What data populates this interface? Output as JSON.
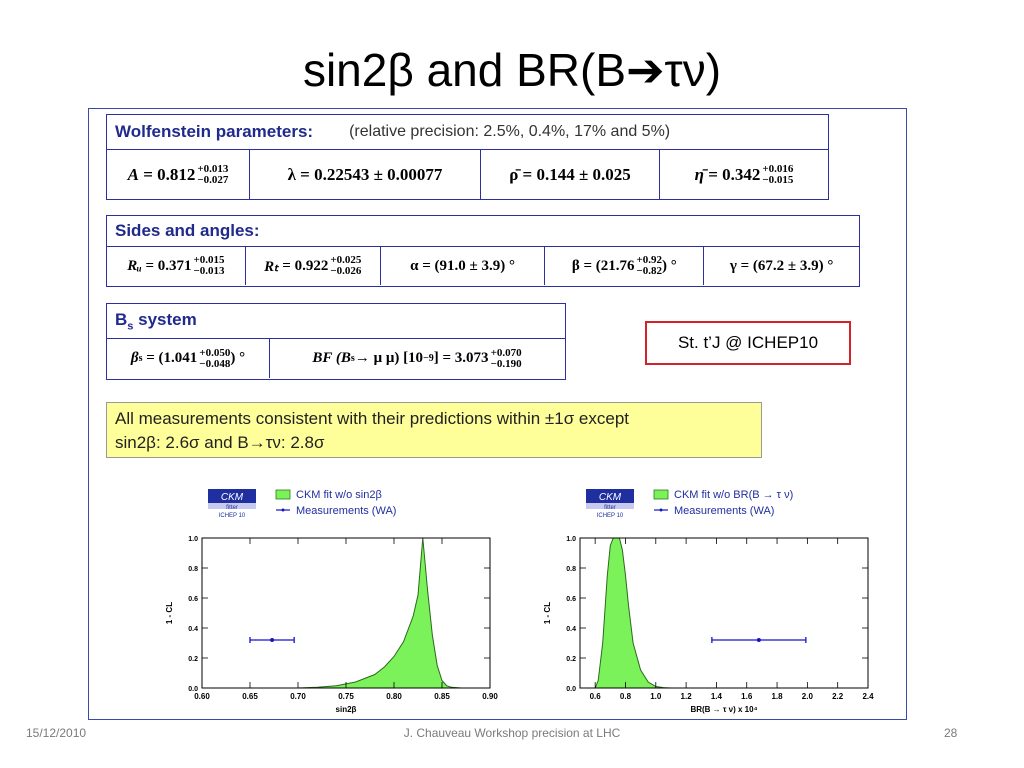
{
  "slide": {
    "title": "sin2β and BR(B➔τν)",
    "tag": "St. t’J @ ICHEP10",
    "summary_line1": "All measurements consistent with their predictions within ±1σ except",
    "summary_line2": "sin2β: 2.6σ and B→τν: 2.8σ",
    "footer_date": "15/12/2010",
    "footer_center": "J. Chauveau Workshop precision at LHC",
    "footer_page": "28"
  },
  "wolfenstein": {
    "header": "Wolfenstein parameters:",
    "note": "(relative precision: 2.5%, 0.4%, 17% and  5%)",
    "A": {
      "label": "A",
      "value": "0.812",
      "up": "+0.013",
      "down": "−0.027"
    },
    "lambda": "λ = 0.22543 ± 0.00077",
    "rho": "ρ̄ = 0.144 ± 0.025",
    "eta": {
      "label": "η̄",
      "value": "0.342",
      "up": "+0.016",
      "down": "−0.015"
    }
  },
  "sides": {
    "header": "Sides and angles:",
    "Ru": {
      "label": "Rᵤ",
      "value": "0.371",
      "up": "+0.015",
      "down": "−0.013"
    },
    "Rt": {
      "label": "Rₜ",
      "value": "0.922",
      "up": "+0.025",
      "down": "−0.026"
    },
    "alpha": "α = (91.0 ± 3.9) °",
    "beta": {
      "label": "β = (21.76",
      "up": "+0.92",
      "down": "−0.82",
      "unit": ") °"
    },
    "gamma": "γ = (67.2 ± 3.9) °"
  },
  "bs": {
    "header": "B",
    "header_sub": "s",
    "header_tail": " system",
    "beta_s": {
      "label": "β",
      "sub": "s",
      "value": "= (1.041",
      "up": "+0.050",
      "down": "−0.048",
      "unit": ") °"
    },
    "bf": {
      "label": "BF (B",
      "sub": "s",
      "mid": " → μ μ) [10",
      "exp": "−9",
      "tail": "] = 3.073",
      "up": "+0.070",
      "down": "−0.190"
    }
  },
  "chart_data": [
    {
      "type": "area",
      "legend": {
        "logo_line1": "CKM",
        "logo_line2": "fitter",
        "logo_line3": "ICHEP 10",
        "fit_label": "CKM fit w/o sin2β",
        "meas_label": "Measurements (WA)"
      },
      "xlabel": "sin2β",
      "ylabel": "1 - CL",
      "xlim": [
        0.6,
        0.9
      ],
      "ylim": [
        0,
        1
      ],
      "xticks": [
        "0.60",
        "0.65",
        "0.70",
        "0.75",
        "0.80",
        "0.85",
        "0.90"
      ],
      "yticks": [
        "0.0",
        "0.2",
        "0.4",
        "0.6",
        "0.8",
        "1.0"
      ],
      "series": [
        {
          "x": [
            0.7,
            0.72,
            0.74,
            0.76,
            0.78,
            0.79,
            0.8,
            0.81,
            0.82,
            0.825,
            0.83,
            0.835,
            0.84,
            0.845,
            0.85,
            0.855,
            0.86,
            0.87
          ],
          "y": [
            0.0,
            0.005,
            0.015,
            0.04,
            0.09,
            0.14,
            0.21,
            0.31,
            0.48,
            0.62,
            1.0,
            0.65,
            0.35,
            0.15,
            0.05,
            0.015,
            0.005,
            0.0
          ]
        }
      ],
      "measurement": {
        "x": 0.673,
        "xerr_low": 0.023,
        "xerr_high": 0.023,
        "y": 0.32
      },
      "fill_color": "#7cf25a",
      "meas_color": "#1515c8"
    },
    {
      "type": "area",
      "legend": {
        "logo_line1": "CKM",
        "logo_line2": "fitter",
        "logo_line3": "ICHEP 10",
        "fit_label": "CKM fit w/o BR(B → τ ν)",
        "meas_label": "Measurements (WA)"
      },
      "xlabel": "BR(B → τ ν) x 10⁴",
      "ylabel": "1 - CL",
      "xlim": [
        0.5,
        2.4
      ],
      "ylim": [
        0,
        1
      ],
      "xticks": [
        "0.6",
        "0.8",
        "1.0",
        "1.2",
        "1.4",
        "1.6",
        "1.8",
        "2.0",
        "2.2",
        "2.4"
      ],
      "yticks": [
        "0.0",
        "0.2",
        "0.4",
        "0.6",
        "0.8",
        "1.0"
      ],
      "series": [
        {
          "x": [
            0.6,
            0.62,
            0.65,
            0.68,
            0.7,
            0.72,
            0.74,
            0.76,
            0.78,
            0.8,
            0.82,
            0.85,
            0.9,
            0.95,
            1.0,
            1.05,
            1.1
          ],
          "y": [
            0.0,
            0.05,
            0.3,
            0.75,
            0.95,
            1.0,
            1.0,
            1.0,
            0.92,
            0.75,
            0.55,
            0.3,
            0.12,
            0.04,
            0.01,
            0.003,
            0.0
          ]
        }
      ],
      "measurement": {
        "x": 1.68,
        "xerr_low": 0.31,
        "xerr_high": 0.31,
        "y": 0.32
      },
      "fill_color": "#7cf25a",
      "meas_color": "#1515c8"
    }
  ]
}
